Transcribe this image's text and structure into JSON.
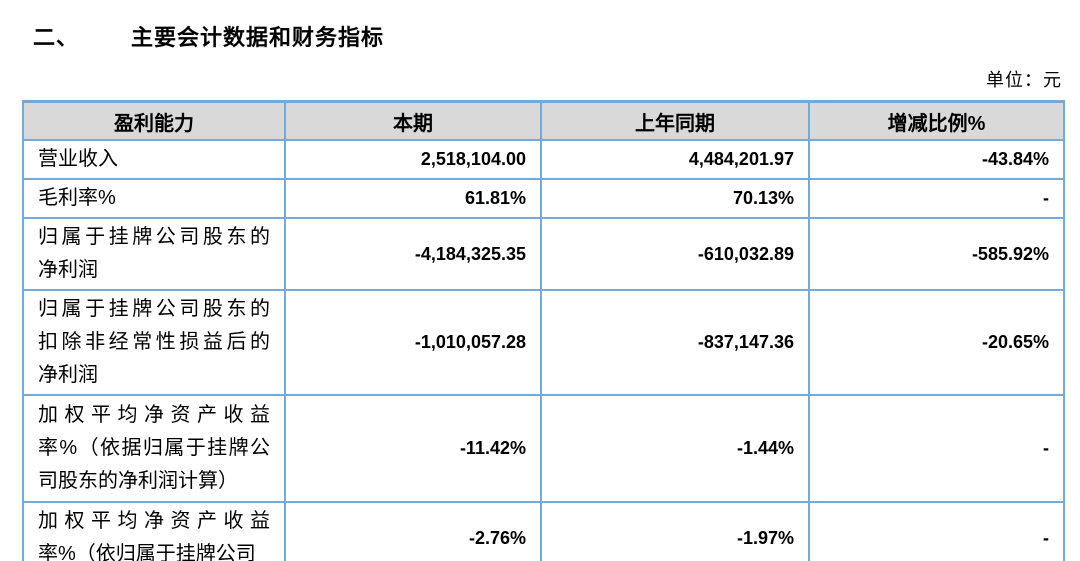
{
  "page": {
    "section_number": "二、",
    "title": "主要会计数据和财务指标",
    "unit_label": "单位：元"
  },
  "colors": {
    "table_border": "#74A9D8",
    "header_background": "#D9D9D9",
    "text": "#000000"
  },
  "table": {
    "columns": [
      "盈利能力",
      "本期",
      "上年同期",
      "增减比例%"
    ],
    "rows": [
      {
        "label_lines": [
          "营业收入"
        ],
        "current": "2,518,104.00",
        "prior": "4,484,201.97",
        "change": "-43.84%"
      },
      {
        "label_lines": [
          "毛利率%"
        ],
        "current": "61.81%",
        "prior": "70.13%",
        "change": "-"
      },
      {
        "label_lines": [
          "归属于挂牌公司股东的",
          "净利润"
        ],
        "current": "-4,184,325.35",
        "prior": "-610,032.89",
        "change": "-585.92%"
      },
      {
        "label_lines": [
          "归属于挂牌公司股东的",
          "扣除非经常性损益后的",
          "净利润"
        ],
        "current": "-1,010,057.28",
        "prior": "-837,147.36",
        "change": "-20.65%"
      },
      {
        "label_lines": [
          "加权平均净资产收益",
          "率%（依据归属于挂牌公",
          "司股东的净利润计算）"
        ],
        "current": "-11.42%",
        "prior": "-1.44%",
        "change": "-"
      },
      {
        "label_lines": [
          "加权平均净资产收益",
          "率%（依归属于挂牌公司"
        ],
        "current": "-2.76%",
        "prior": "-1.97%",
        "change": "-"
      }
    ]
  }
}
